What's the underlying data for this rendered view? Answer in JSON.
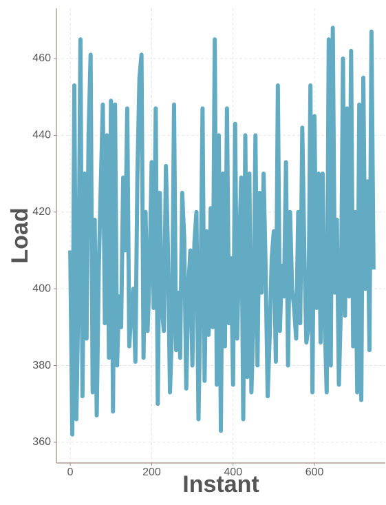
{
  "chart_data": {
    "type": "line",
    "xlabel": "Instant",
    "ylabel": "Load",
    "x": [
      0,
      5,
      10,
      15,
      20,
      25,
      30,
      35,
      40,
      45,
      50,
      55,
      60,
      65,
      70,
      75,
      80,
      85,
      90,
      95,
      100,
      105,
      110,
      115,
      120,
      125,
      130,
      135,
      140,
      145,
      150,
      155,
      160,
      165,
      170,
      175,
      180,
      185,
      190,
      195,
      200,
      205,
      210,
      215,
      220,
      225,
      230,
      235,
      240,
      245,
      250,
      255,
      260,
      265,
      270,
      275,
      280,
      285,
      290,
      295,
      300,
      305,
      310,
      315,
      320,
      325,
      330,
      335,
      340,
      345,
      350,
      355,
      360,
      365,
      370,
      375,
      380,
      385,
      390,
      395,
      400,
      405,
      410,
      415,
      420,
      425,
      430,
      435,
      440,
      445,
      450,
      455,
      460,
      465,
      470,
      475,
      480,
      485,
      490,
      495,
      500,
      505,
      510,
      515,
      520,
      525,
      530,
      535,
      540,
      545,
      550,
      555,
      560,
      565,
      570,
      575,
      580,
      585,
      590,
      595,
      600,
      605,
      610,
      615,
      620,
      625,
      630,
      635,
      640,
      645,
      650,
      655,
      660,
      665,
      670,
      675,
      680,
      685,
      690,
      695,
      700,
      705,
      710,
      715,
      720,
      725,
      730,
      735,
      740,
      745
    ],
    "values": [
      410,
      362,
      453,
      366,
      398,
      465,
      372,
      430,
      387,
      440,
      461,
      373,
      418,
      367,
      405,
      427,
      448,
      391,
      440,
      382,
      449,
      368,
      448,
      380,
      398,
      390,
      429,
      410,
      447,
      385,
      395,
      400,
      381,
      430,
      455,
      461,
      382,
      420,
      389,
      405,
      433,
      395,
      447,
      370,
      425,
      395,
      389,
      432,
      410,
      373,
      390,
      448,
      384,
      399,
      382,
      425,
      413,
      374,
      400,
      410,
      380,
      412,
      420,
      366,
      398,
      447,
      376,
      415,
      388,
      421,
      390,
      465,
      375,
      440,
      363,
      430,
      385,
      447,
      391,
      408,
      375,
      443,
      387,
      410,
      429,
      366,
      440,
      377,
      430,
      373,
      392,
      440,
      380,
      425,
      399,
      430,
      405,
      372,
      388,
      408,
      415,
      381,
      453,
      389,
      406,
      398,
      433,
      380,
      420,
      400,
      395,
      387,
      420,
      391,
      442,
      410,
      386,
      390,
      453,
      373,
      445,
      395,
      430,
      386,
      430,
      392,
      373,
      465,
      380,
      468,
      399,
      418,
      375,
      396,
      460,
      393,
      447,
      398,
      462,
      385,
      420,
      373,
      448,
      371,
      455,
      400,
      428,
      384,
      467,
      405
    ],
    "color": "#62abc2",
    "xlim": [
      -34,
      774
    ],
    "ylim": [
      354.6,
      473.1
    ],
    "xticks": [
      0,
      200,
      400,
      600
    ],
    "yticks": [
      360,
      380,
      400,
      420,
      440,
      460
    ],
    "grid": true
  }
}
